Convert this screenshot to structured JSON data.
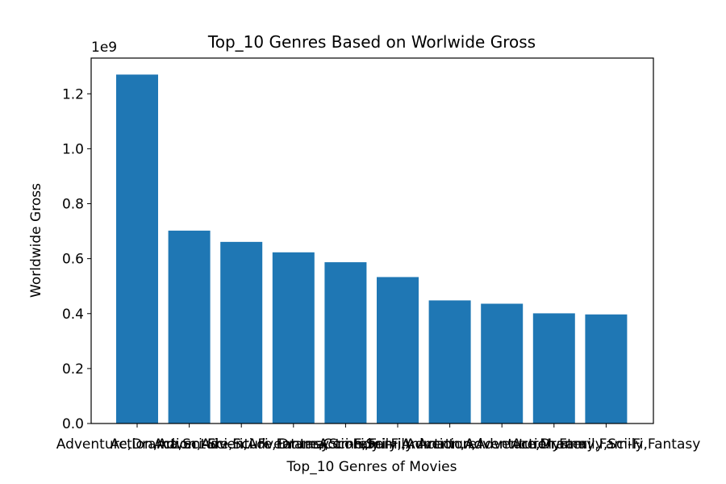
{
  "chart_data": {
    "type": "bar",
    "title": "Top_10 Genres Based on Worlwide Gross",
    "xlabel": "Top_10 Genres of Movies",
    "ylabel": "Worldwide Gross",
    "offset_label": "1e9",
    "categories": [
      "Adventure,Drama,Sci-Fi",
      "Action,Adventure,Sci-Fi",
      "Action,Adventure,Fantasy",
      "Sci-Fi,Adventure,Comedy",
      "Drama,Sci-Fi,Family",
      "Action,Sci-Fi,Adventure",
      "Family,Animation,Adventure",
      "Action,Adventure,Drama",
      "Adventure,Mystery,Family",
      "Action,Family,Sci-Fi,Fantasy"
    ],
    "values": [
      1270000000,
      702000000,
      661000000,
      623000000,
      587000000,
      533000000,
      448000000,
      436000000,
      401000000,
      397000000
    ],
    "ylim": [
      0,
      1330000000
    ],
    "yticks": [
      0,
      200000000,
      400000000,
      600000000,
      800000000,
      1000000000,
      1200000000
    ],
    "ytick_labels": [
      "0.0",
      "0.2",
      "0.4",
      "0.6",
      "0.8",
      "1.0",
      "1.2"
    ],
    "colors": {
      "bar": "#1f77b4",
      "axis": "#000000"
    },
    "grid": false
  }
}
